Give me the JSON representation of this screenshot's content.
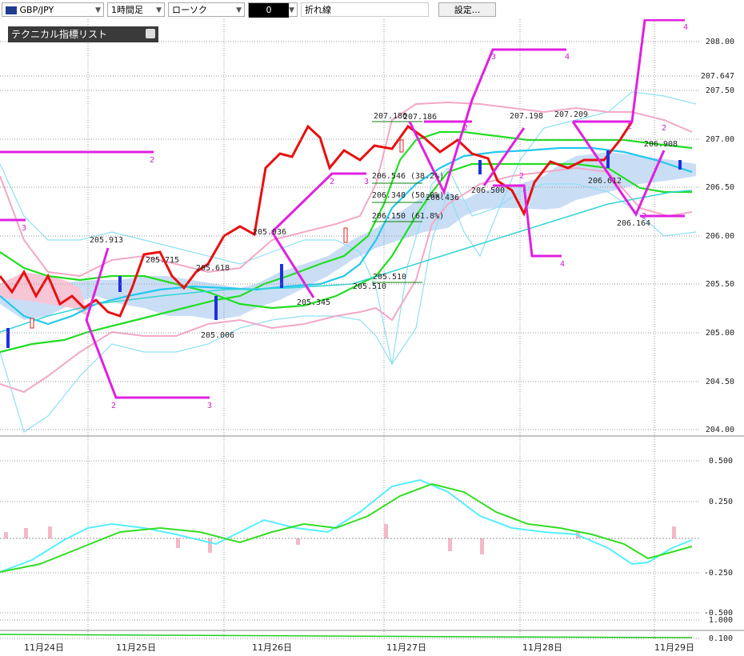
{
  "toolbar": {
    "symbol": "GBP/JPY",
    "timeframe": "1時間足",
    "chart_type": "ローソク",
    "drawing_icon": "0",
    "line_type": "折れ線",
    "settings": "設定..."
  },
  "panel": {
    "title": "テクニカル指標リスト"
  },
  "price_axis": [
    "208.00",
    "207.647",
    "207.50",
    "207.00",
    "206.50",
    "206.00",
    "205.50",
    "205.00",
    "204.50",
    "204.00"
  ],
  "osc_axis": [
    "0.500",
    "0.250",
    "-0.250",
    "-0.500",
    "1.000",
    "0.100"
  ],
  "dates": [
    "11月24日",
    "11月25日",
    "11月26日",
    "11月27日",
    "11月28日",
    "11月29日"
  ],
  "annotations": [
    "205.913",
    "205.715",
    "205.618",
    "205.006",
    "205.936",
    "205.345",
    "207.186",
    "207.186",
    "206.546 (38.2%)",
    "206.348 (50.0%)",
    "206.150 (61.8%)",
    "205.510",
    "205.510",
    "206.436",
    "206.500",
    "207.198",
    "207.209",
    "206.612",
    "206.164",
    "206.908"
  ],
  "wave_labels": [
    "2",
    "3",
    "2",
    "3",
    "2",
    "3",
    "3",
    "4",
    "2",
    "2",
    "4",
    "2",
    "4",
    "2",
    "2"
  ]
}
